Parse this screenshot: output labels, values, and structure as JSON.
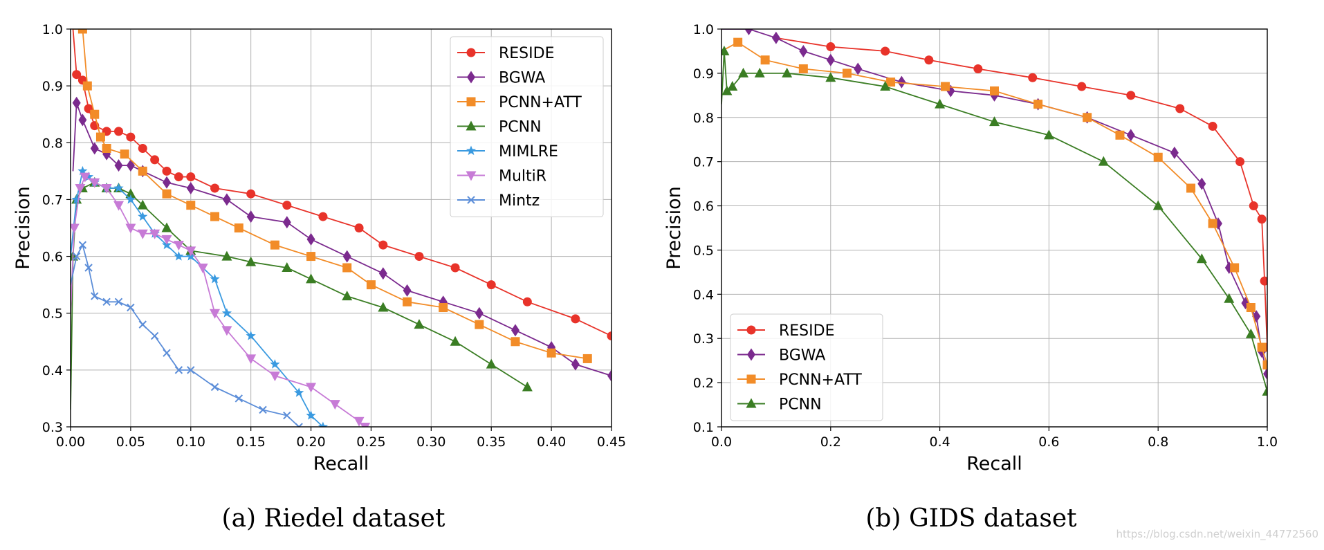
{
  "watermark": "https://blog.csdn.net/weixin_44772560",
  "colors": {
    "RESIDE": "#e8332a",
    "BGWA": "#7b2a8e",
    "PCNN+ATT": "#f28c28",
    "PCNN": "#3a7d23",
    "MIMLRE": "#3a9ae0",
    "MultiR": "#c77bd6",
    "Mintz": "#5b8dd8"
  },
  "chart_data": [
    {
      "type": "line",
      "caption": "(a) Riedel dataset",
      "xlabel": "Recall",
      "ylabel": "Precision",
      "xlim": [
        0.0,
        0.45
      ],
      "ylim": [
        0.3,
        1.0
      ],
      "xticks": [
        "0.00",
        "0.05",
        "0.10",
        "0.15",
        "0.20",
        "0.25",
        "0.30",
        "0.35",
        "0.40",
        "0.45"
      ],
      "yticks": [
        "0.3",
        "0.4",
        "0.5",
        "0.6",
        "0.7",
        "0.8",
        "0.9",
        "1.0"
      ],
      "grid": true,
      "legend_position": "top-right",
      "series": [
        {
          "name": "RESIDE",
          "marker": "circle",
          "x": [
            0.002,
            0.005,
            0.01,
            0.015,
            0.02,
            0.03,
            0.04,
            0.05,
            0.06,
            0.07,
            0.08,
            0.09,
            0.1,
            0.12,
            0.15,
            0.18,
            0.21,
            0.24,
            0.26,
            0.29,
            0.32,
            0.35,
            0.38,
            0.42,
            0.45
          ],
          "y": [
            1.0,
            0.92,
            0.91,
            0.86,
            0.83,
            0.82,
            0.82,
            0.81,
            0.79,
            0.77,
            0.75,
            0.74,
            0.74,
            0.72,
            0.71,
            0.69,
            0.67,
            0.65,
            0.62,
            0.6,
            0.58,
            0.55,
            0.52,
            0.49,
            0.46
          ]
        },
        {
          "name": "BGWA",
          "marker": "diamond",
          "x": [
            0.002,
            0.005,
            0.01,
            0.02,
            0.03,
            0.04,
            0.05,
            0.06,
            0.08,
            0.1,
            0.13,
            0.15,
            0.18,
            0.2,
            0.23,
            0.26,
            0.28,
            0.31,
            0.34,
            0.37,
            0.4,
            0.42,
            0.45
          ],
          "y": [
            0.75,
            0.87,
            0.84,
            0.79,
            0.78,
            0.76,
            0.76,
            0.75,
            0.73,
            0.72,
            0.7,
            0.67,
            0.66,
            0.63,
            0.6,
            0.57,
            0.54,
            0.52,
            0.5,
            0.47,
            0.44,
            0.41,
            0.39
          ]
        },
        {
          "name": "PCNN+ATT",
          "marker": "square",
          "x": [
            0.002,
            0.01,
            0.014,
            0.02,
            0.025,
            0.03,
            0.045,
            0.06,
            0.08,
            0.1,
            0.12,
            0.14,
            0.17,
            0.2,
            0.23,
            0.25,
            0.28,
            0.31,
            0.34,
            0.37,
            0.4,
            0.43
          ],
          "y": [
            1.0,
            1.0,
            0.9,
            0.85,
            0.81,
            0.79,
            0.78,
            0.75,
            0.71,
            0.69,
            0.67,
            0.65,
            0.62,
            0.6,
            0.58,
            0.55,
            0.52,
            0.51,
            0.48,
            0.45,
            0.43,
            0.42
          ]
        },
        {
          "name": "PCNN",
          "marker": "triangle",
          "x": [
            0.0,
            0.002,
            0.005,
            0.01,
            0.02,
            0.03,
            0.04,
            0.05,
            0.06,
            0.08,
            0.1,
            0.13,
            0.15,
            0.18,
            0.2,
            0.23,
            0.26,
            0.29,
            0.32,
            0.35,
            0.38
          ],
          "y": [
            0.33,
            0.6,
            0.7,
            0.72,
            0.73,
            0.72,
            0.72,
            0.71,
            0.69,
            0.65,
            0.61,
            0.6,
            0.59,
            0.58,
            0.56,
            0.53,
            0.51,
            0.48,
            0.45,
            0.41,
            0.37
          ]
        },
        {
          "name": "MIMLRE",
          "marker": "star",
          "x": [
            0.0,
            0.005,
            0.01,
            0.015,
            0.02,
            0.03,
            0.04,
            0.05,
            0.06,
            0.07,
            0.08,
            0.09,
            0.1,
            0.12,
            0.13,
            0.15,
            0.17,
            0.19,
            0.2,
            0.21
          ],
          "y": [
            0.6,
            0.7,
            0.75,
            0.74,
            0.73,
            0.72,
            0.72,
            0.7,
            0.67,
            0.64,
            0.62,
            0.6,
            0.6,
            0.56,
            0.5,
            0.46,
            0.41,
            0.36,
            0.32,
            0.3
          ]
        },
        {
          "name": "MultiR",
          "marker": "triangle-down",
          "x": [
            0.0,
            0.003,
            0.008,
            0.012,
            0.02,
            0.03,
            0.04,
            0.05,
            0.06,
            0.07,
            0.08,
            0.09,
            0.1,
            0.11,
            0.12,
            0.13,
            0.15,
            0.17,
            0.2,
            0.22,
            0.24,
            0.245
          ],
          "y": [
            0.5,
            0.65,
            0.72,
            0.74,
            0.73,
            0.72,
            0.69,
            0.65,
            0.64,
            0.64,
            0.63,
            0.62,
            0.61,
            0.58,
            0.5,
            0.47,
            0.42,
            0.39,
            0.37,
            0.34,
            0.31,
            0.3
          ]
        },
        {
          "name": "Mintz",
          "marker": "x",
          "x": [
            0.0,
            0.005,
            0.01,
            0.015,
            0.02,
            0.03,
            0.04,
            0.05,
            0.06,
            0.07,
            0.08,
            0.09,
            0.1,
            0.12,
            0.14,
            0.16,
            0.18,
            0.19
          ],
          "y": [
            0.55,
            0.6,
            0.62,
            0.58,
            0.53,
            0.52,
            0.52,
            0.51,
            0.48,
            0.46,
            0.43,
            0.4,
            0.4,
            0.37,
            0.35,
            0.33,
            0.32,
            0.3
          ]
        }
      ]
    },
    {
      "type": "line",
      "caption": "(b) GIDS dataset",
      "xlabel": "Recall",
      "ylabel": "Precision",
      "xlim": [
        0.0,
        1.0
      ],
      "ylim": [
        0.1,
        1.0
      ],
      "xticks": [
        "0.0",
        "0.2",
        "0.4",
        "0.6",
        "0.8",
        "1.0"
      ],
      "yticks": [
        "0.1",
        "0.2",
        "0.3",
        "0.4",
        "0.5",
        "0.6",
        "0.7",
        "0.8",
        "0.9",
        "1.0"
      ],
      "grid": true,
      "legend_position": "lower-left",
      "series": [
        {
          "name": "RESIDE",
          "marker": "circle",
          "x": [
            0.1,
            0.2,
            0.3,
            0.38,
            0.47,
            0.57,
            0.66,
            0.75,
            0.84,
            0.9,
            0.95,
            0.975,
            0.99,
            0.995,
            1.0
          ],
          "y": [
            0.98,
            0.96,
            0.95,
            0.93,
            0.91,
            0.89,
            0.87,
            0.85,
            0.82,
            0.78,
            0.7,
            0.6,
            0.57,
            0.43,
            0.28
          ]
        },
        {
          "name": "BGWA",
          "marker": "diamond",
          "x": [
            0.0,
            0.05,
            0.1,
            0.15,
            0.2,
            0.25,
            0.33,
            0.42,
            0.5,
            0.58,
            0.67,
            0.75,
            0.83,
            0.88,
            0.91,
            0.93,
            0.96,
            0.98,
            0.99,
            1.0
          ],
          "y": [
            1.0,
            1.0,
            0.98,
            0.95,
            0.93,
            0.91,
            0.88,
            0.86,
            0.85,
            0.83,
            0.8,
            0.76,
            0.72,
            0.65,
            0.56,
            0.46,
            0.38,
            0.35,
            0.27,
            0.22
          ]
        },
        {
          "name": "PCNN+ATT",
          "marker": "square",
          "x": [
            0.0,
            0.03,
            0.08,
            0.15,
            0.23,
            0.31,
            0.41,
            0.5,
            0.58,
            0.67,
            0.73,
            0.8,
            0.86,
            0.9,
            0.94,
            0.97,
            0.99,
            1.0
          ],
          "y": [
            0.95,
            0.97,
            0.93,
            0.91,
            0.9,
            0.88,
            0.87,
            0.86,
            0.83,
            0.8,
            0.76,
            0.71,
            0.64,
            0.56,
            0.46,
            0.37,
            0.28,
            0.24
          ]
        },
        {
          "name": "PCNN",
          "marker": "triangle",
          "x": [
            0.0,
            0.005,
            0.01,
            0.02,
            0.04,
            0.07,
            0.12,
            0.2,
            0.3,
            0.4,
            0.5,
            0.6,
            0.7,
            0.8,
            0.88,
            0.93,
            0.97,
            1.0
          ],
          "y": [
            0.83,
            0.95,
            0.86,
            0.87,
            0.9,
            0.9,
            0.9,
            0.89,
            0.87,
            0.83,
            0.79,
            0.76,
            0.7,
            0.6,
            0.48,
            0.39,
            0.31,
            0.18
          ]
        }
      ]
    }
  ]
}
